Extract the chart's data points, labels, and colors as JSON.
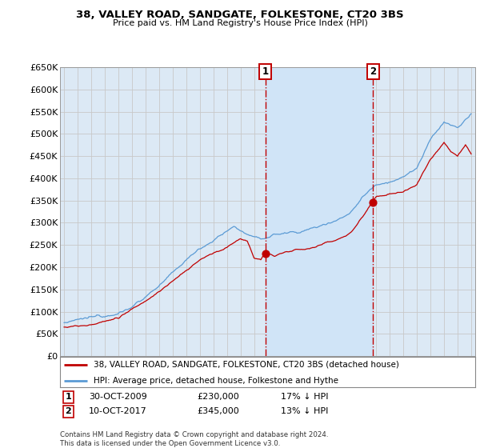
{
  "title_line1": "38, VALLEY ROAD, SANDGATE, FOLKESTONE, CT20 3BS",
  "title_line2": "Price paid vs. HM Land Registry's House Price Index (HPI)",
  "legend_line1": "38, VALLEY ROAD, SANDGATE, FOLKESTONE, CT20 3BS (detached house)",
  "legend_line2": "HPI: Average price, detached house, Folkestone and Hythe",
  "footnote": "Contains HM Land Registry data © Crown copyright and database right 2024.\nThis data is licensed under the Open Government Licence v3.0.",
  "marker1_date": "30-OCT-2009",
  "marker1_price": "£230,000",
  "marker1_pct": "17% ↓ HPI",
  "marker2_date": "10-OCT-2017",
  "marker2_price": "£345,000",
  "marker2_pct": "13% ↓ HPI",
  "hpi_color": "#5b9bd5",
  "price_color": "#c00000",
  "marker_color": "#c00000",
  "background_color": "#ffffff",
  "grid_color": "#c8c8c8",
  "axis_bg_color": "#dce9f5",
  "shade_color": "#d0e4f7",
  "ylim": [
    0,
    650000
  ],
  "yticks": [
    0,
    50000,
    100000,
    150000,
    200000,
    250000,
    300000,
    350000,
    400000,
    450000,
    500000,
    550000,
    600000,
    650000
  ],
  "marker1_x_year": 2009.83,
  "marker1_y": 230000,
  "marker2_x_year": 2017.77,
  "marker2_y": 345000,
  "vline_color": "#c00000",
  "xmin": 1994.7,
  "xmax": 2025.3
}
